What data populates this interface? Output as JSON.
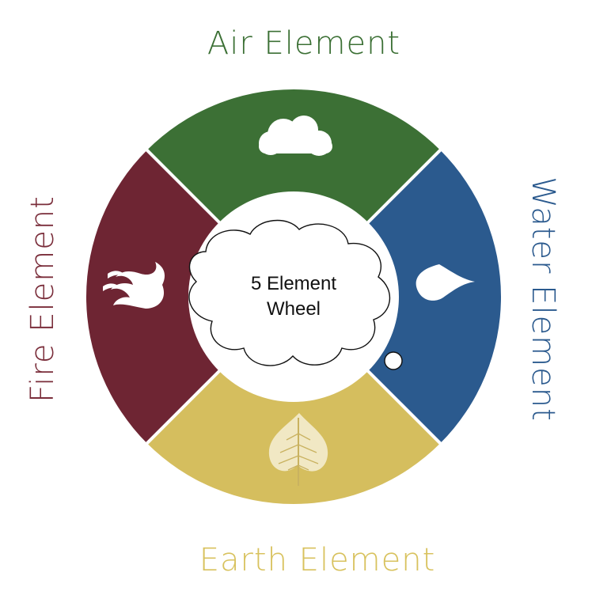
{
  "center": {
    "line1": "5 Element",
    "line2": "Wheel"
  },
  "elements": {
    "air": {
      "label": "Air Element",
      "color": "#3C7035",
      "icon": "cloud-icon"
    },
    "water": {
      "label": "Water Element",
      "color": "#2B5A8E",
      "icon": "water-drop-icon"
    },
    "earth": {
      "label": "Earth Element",
      "color": "#D5BE5E",
      "icon": "leaf-icon"
    },
    "fire": {
      "label": "Fire Element",
      "color": "#6E2533",
      "icon": "flame-icon"
    }
  },
  "label_colors": {
    "air": "#3C7035",
    "water": "#2B5A8E",
    "earth": "#D8C25E",
    "fire": "#7A2D3A"
  }
}
